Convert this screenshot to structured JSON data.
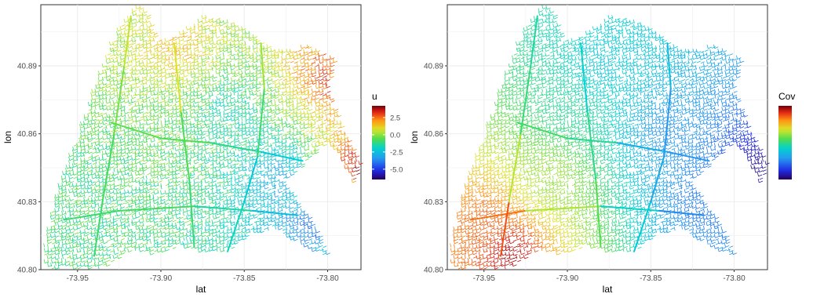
{
  "chart_data": [
    {
      "type": "heatmap",
      "subtype": "spatial street network (lines colored by value)",
      "xlabel": "lat",
      "ylabel": "lon",
      "xlim": [
        -73.972,
        -73.78
      ],
      "ylim": [
        40.8,
        40.917
      ],
      "x_ticks": [
        -73.95,
        -73.9,
        -73.85,
        -73.8
      ],
      "x_tick_labels": [
        "-73.95",
        "-73.90",
        "-73.85",
        "-73.80"
      ],
      "y_ticks": [
        40.8,
        40.83,
        40.86,
        40.89
      ],
      "y_tick_labels": [
        "40.80",
        "40.83",
        "40.86",
        "40.89"
      ],
      "grid": true,
      "legend": {
        "title": "u",
        "position": "right",
        "ticks": [
          2.5,
          0.0,
          -2.5,
          -5.0
        ],
        "tick_labels": [
          "2.5",
          "0.0",
          "-2.5",
          "-5.0"
        ],
        "range": [
          -6.5,
          4.2
        ],
        "colormap": "rainbow (dark blue low → dark red high)"
      },
      "value_field": "u",
      "value_pattern": "mostly near 0 (green/yellow); high (orange/red) in north-west and east fringes; low (blue) along south-east streets",
      "regions": [
        {
          "lat": -73.94,
          "lon": 40.83,
          "value": -1.0
        },
        {
          "lat": -73.9,
          "lon": 40.86,
          "value": -0.5
        },
        {
          "lat": -73.89,
          "lon": 40.895,
          "value": 1.5
        },
        {
          "lat": -73.86,
          "lon": 40.87,
          "value": -1.5
        },
        {
          "lat": -73.83,
          "lon": 40.84,
          "value": -3.0
        },
        {
          "lat": -73.81,
          "lon": 40.82,
          "value": -4.0
        },
        {
          "lat": -73.8,
          "lon": 40.885,
          "value": 3.0
        },
        {
          "lat": -73.785,
          "lon": 40.845,
          "value": 3.5
        }
      ]
    },
    {
      "type": "heatmap",
      "subtype": "spatial street network (lines colored by value)",
      "xlabel": "lat",
      "ylabel": "lon",
      "xlim": [
        -73.972,
        -73.78
      ],
      "ylim": [
        40.8,
        40.917
      ],
      "x_ticks": [
        -73.95,
        -73.9,
        -73.85,
        -73.8
      ],
      "x_tick_labels": [
        "-73.95",
        "-73.90",
        "-73.85",
        "-73.80"
      ],
      "y_ticks": [
        40.8,
        40.83,
        40.86,
        40.89
      ],
      "y_tick_labels": [
        "40.80",
        "40.83",
        "40.86",
        "40.89"
      ],
      "grid": true,
      "legend": {
        "title": "Cov",
        "position": "right",
        "tick_labels": [],
        "colormap": "rainbow (dark blue low → dark red high)"
      },
      "value_field": "Cov",
      "value_pattern": "smooth gradient: highest (red) in south-west, decreasing through yellow/green to blue in the north and east; darkest blue at far east edge",
      "regions": [
        {
          "lat": -73.935,
          "lon": 40.807,
          "value": 0.97
        },
        {
          "lat": -73.95,
          "lon": 40.82,
          "value": 0.85
        },
        {
          "lat": -73.91,
          "lon": 40.84,
          "value": 0.62
        },
        {
          "lat": -73.9,
          "lon": 40.87,
          "value": 0.48
        },
        {
          "lat": -73.88,
          "lon": 40.89,
          "value": 0.4
        },
        {
          "lat": -73.84,
          "lon": 40.86,
          "value": 0.28
        },
        {
          "lat": -73.82,
          "lon": 40.83,
          "value": 0.24
        },
        {
          "lat": -73.785,
          "lon": 40.845,
          "value": 0.05
        }
      ]
    }
  ]
}
